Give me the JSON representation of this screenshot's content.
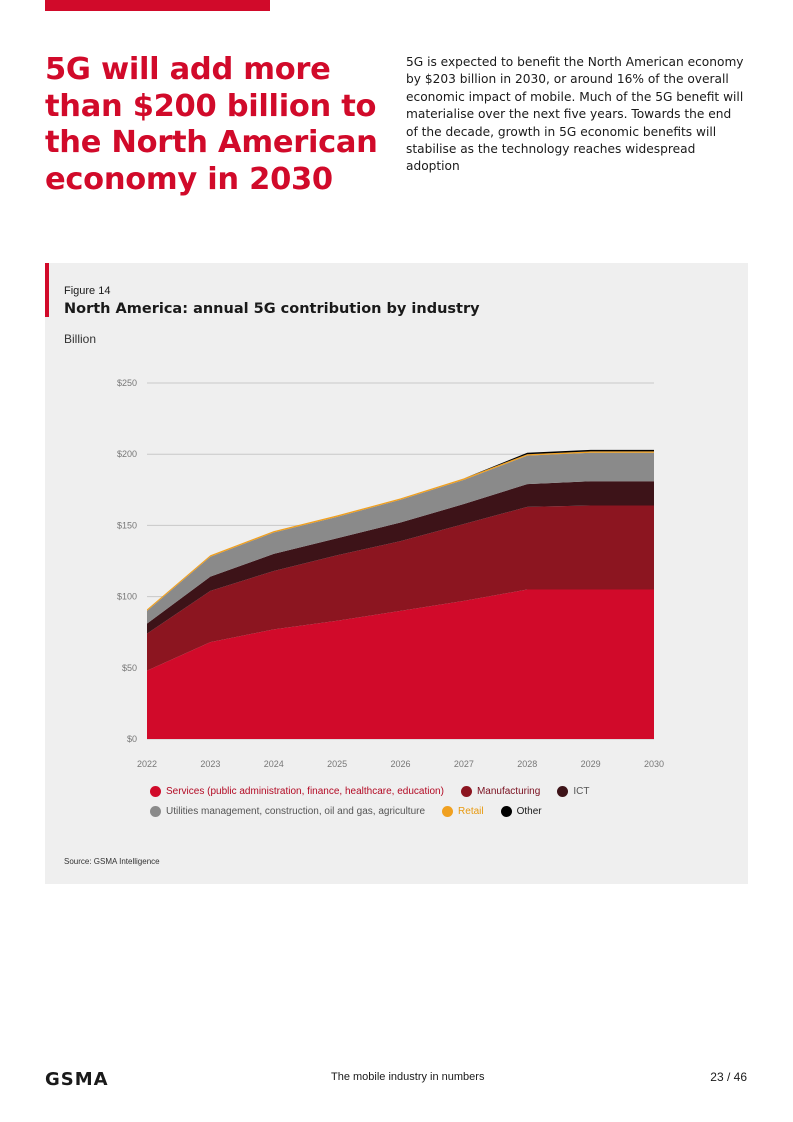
{
  "headline": "5G will add more than $200 billion to the North American economy in 2030",
  "intro": "5G is expected to benefit the North American economy by $203 billion in 2030, or around 16% of the overall economic impact of mobile. Much of the 5G benefit will materialise over the next five years. Towards the end of the decade, growth in 5G economic benefits will stabilise as the technology reaches widespread adoption",
  "figure": {
    "label": "Figure 14",
    "title": "North America: annual 5G contribution by industry",
    "unit": "Billion",
    "source": "Source: GSMA Intelligence"
  },
  "chart_data": {
    "type": "area",
    "stacked": true,
    "title": "North America: annual 5G contribution by industry",
    "ylabel": "Billion",
    "xlabel": "",
    "ylim": [
      0,
      250
    ],
    "yticks": [
      0,
      50,
      100,
      150,
      200,
      250
    ],
    "ytick_labels": [
      "$0",
      "$50",
      "$100",
      "$150",
      "$200",
      "$250"
    ],
    "grid": true,
    "categories": [
      "2022",
      "2023",
      "2024",
      "2025",
      "2026",
      "2027",
      "2028",
      "2029",
      "2030"
    ],
    "series": [
      {
        "name": "Services (public administration, finance, healthcare, education)",
        "color": "#d10a2a",
        "values": [
          48,
          68,
          77,
          83,
          90,
          97,
          105,
          105,
          105
        ]
      },
      {
        "name": "Manufacturing",
        "color": "#8c1520",
        "values": [
          26,
          36,
          41,
          46,
          49,
          54,
          58,
          59,
          59
        ]
      },
      {
        "name": "ICT",
        "color": "#3d1318",
        "values": [
          7,
          10,
          12,
          12,
          13,
          14,
          16,
          17,
          17
        ]
      },
      {
        "name": "Utilities management, construction, oil and gas, agriculture",
        "color": "#8a8a8a",
        "values": [
          9,
          14,
          15,
          15,
          16,
          17,
          20,
          20,
          20
        ]
      },
      {
        "name": "Retail",
        "color": "#f0a020",
        "values": [
          1,
          1,
          1,
          1,
          1,
          1,
          1,
          1,
          1
        ]
      },
      {
        "name": "Other",
        "color": "#000000",
        "values": [
          0,
          0,
          0,
          0,
          0,
          0,
          1,
          1,
          1
        ]
      }
    ],
    "legend_position": "bottom"
  },
  "footer": {
    "logo": "GSMA",
    "center": "The mobile industry in numbers",
    "page": "23 / 46"
  }
}
